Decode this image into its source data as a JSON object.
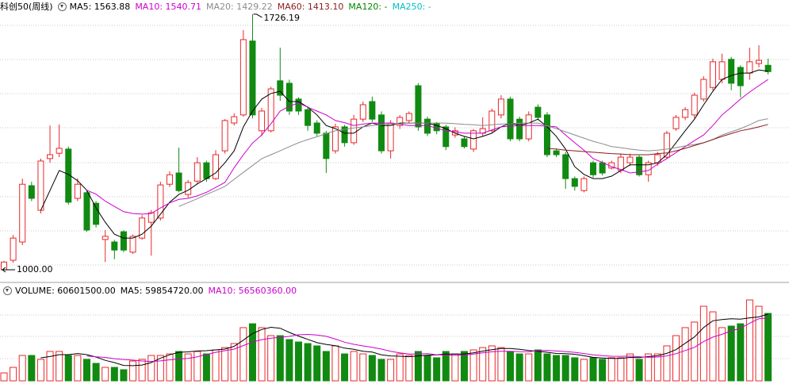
{
  "chart_data": [
    {
      "type": "candlestick",
      "title": "科创50(周线)",
      "ylim": [
        973,
        1744
      ],
      "up_color": "#e8282a",
      "down_color": "#118a11",
      "open": [
        1000,
        1027,
        1079,
        1239,
        1169,
        1316,
        1331,
        1343,
        1203,
        1219,
        1189,
        1086,
        1079,
        1108,
        1050,
        1090,
        1135,
        1147,
        1243,
        1275,
        1214,
        1252,
        1304,
        1259,
        1338,
        1417,
        1440,
        1650,
        1395,
        1395,
        1537,
        1530,
        1485,
        1455,
        1417,
        1388,
        1338,
        1406,
        1361,
        1428,
        1478,
        1440,
        1338,
        1410,
        1424,
        1523,
        1428,
        1415,
        1406,
        1383,
        1372,
        1343,
        1388,
        1395,
        1440,
        1485,
        1428,
        1372,
        1462,
        1440,
        1338,
        1327,
        1259,
        1225,
        1304,
        1304,
        1289,
        1282,
        1304,
        1320,
        1270,
        1304,
        1320,
        1401,
        1433,
        1440,
        1485,
        1518,
        1541,
        1598,
        1575,
        1559,
        1586,
        1581
      ],
      "high": [
        1025,
        1099,
        1259,
        1250,
        1316,
        1410,
        1413,
        1350,
        1260,
        1225,
        1195,
        1113,
        1085,
        1112,
        1100,
        1155,
        1170,
        1250,
        1280,
        1347,
        1255,
        1320,
        1310,
        1340,
        1428,
        1445,
        1681,
        1726.19,
        1460,
        1520,
        1631,
        1540,
        1490,
        1465,
        1425,
        1395,
        1415,
        1412,
        1440,
        1478,
        1492,
        1450,
        1425,
        1440,
        1450,
        1530,
        1435,
        1420,
        1412,
        1405,
        1380,
        1400,
        1433,
        1458,
        1496,
        1492,
        1435,
        1450,
        1470,
        1448,
        1345,
        1335,
        1265,
        1265,
        1310,
        1310,
        1310,
        1330,
        1330,
        1325,
        1310,
        1335,
        1395,
        1440,
        1462,
        1503,
        1550,
        1600,
        1614,
        1605,
        1581,
        1631,
        1638,
        1600
      ],
      "low": [
        1000,
        1020,
        1070,
        1195,
        1160,
        1304,
        1320,
        1185,
        1195,
        1108,
        1120,
        1022,
        1030,
        1050,
        1045,
        1085,
        1040,
        1140,
        1235,
        1220,
        1205,
        1245,
        1250,
        1255,
        1330,
        1410,
        1435,
        1430,
        1380,
        1390,
        1480,
        1440,
        1440,
        1395,
        1380,
        1275,
        1330,
        1350,
        1355,
        1420,
        1420,
        1330,
        1316,
        1400,
        1415,
        1395,
        1380,
        1385,
        1340,
        1375,
        1345,
        1335,
        1380,
        1390,
        1430,
        1365,
        1365,
        1365,
        1425,
        1320,
        1320,
        1230,
        1225,
        1220,
        1262,
        1268,
        1285,
        1275,
        1295,
        1265,
        1250,
        1295,
        1315,
        1395,
        1425,
        1430,
        1478,
        1510,
        1530,
        1510,
        1490,
        1540,
        1575,
        1555
      ],
      "close": [
        1022,
        1090,
        1243,
        1203,
        1309,
        1327,
        1345,
        1192,
        1243,
        1113,
        1129,
        1095,
        1056,
        1056,
        1095,
        1147,
        1162,
        1241,
        1270,
        1225,
        1248,
        1304,
        1259,
        1327,
        1424,
        1435,
        1654,
        1440,
        1451,
        1514,
        1496,
        1451,
        1451,
        1410,
        1388,
        1316,
        1406,
        1361,
        1428,
        1469,
        1428,
        1338,
        1417,
        1433,
        1444,
        1406,
        1388,
        1395,
        1350,
        1395,
        1350,
        1395,
        1401,
        1451,
        1485,
        1372,
        1372,
        1440,
        1433,
        1327,
        1327,
        1259,
        1237,
        1259,
        1270,
        1275,
        1304,
        1320,
        1320,
        1270,
        1304,
        1327,
        1388,
        1433,
        1455,
        1496,
        1541,
        1591,
        1591,
        1530,
        1523,
        1591,
        1595,
        1563
      ],
      "series": [
        {
          "name": "MA5",
          "legend": "MA5: 1563.88",
          "color": "#000000",
          "values": [
            null,
            null,
            null,
            null,
            1169,
            1225,
            1282,
            1271,
            1253,
            1226,
            1176,
            1135,
            1101,
            1090,
            1090,
            1101,
            1124,
            1158,
            1192,
            1214,
            1226,
            1244,
            1259,
            1275,
            1304,
            1338,
            1406,
            1451,
            1485,
            1501,
            1507,
            1478,
            1478,
            1462,
            1440,
            1410,
            1401,
            1388,
            1388,
            1406,
            1417,
            1410,
            1410,
            1417,
            1417,
            1417,
            1417,
            1410,
            1401,
            1388,
            1379,
            1372,
            1379,
            1388,
            1406,
            1417,
            1410,
            1417,
            1428,
            1406,
            1379,
            1343,
            1293,
            1271,
            1259,
            1259,
            1266,
            1282,
            1298,
            1298,
            1298,
            1304,
            1327,
            1361,
            1395,
            1428,
            1469,
            1507,
            1541,
            1552,
            1559,
            1559,
            1568,
            1563.88
          ]
        },
        {
          "name": "MA10",
          "legend": "MA10: 1540.71",
          "color": "#cc00cc",
          "values": [
            null,
            null,
            null,
            null,
            null,
            null,
            null,
            null,
            null,
            1226,
            1215,
            1195,
            1180,
            1165,
            1160,
            1158,
            1160,
            1176,
            1190,
            1200,
            1203,
            1210,
            1220,
            1234,
            1248,
            1290,
            1327,
            1360,
            1383,
            1415,
            1451,
            1465,
            1474,
            1462,
            1451,
            1440,
            1424,
            1418,
            1410,
            1414,
            1417,
            1417,
            1417,
            1414,
            1410,
            1410,
            1410,
            1402,
            1395,
            1392,
            1388,
            1388,
            1388,
            1397,
            1406,
            1408,
            1410,
            1410,
            1410,
            1408,
            1406,
            1383,
            1361,
            1340,
            1316,
            1305,
            1293,
            1285,
            1275,
            1278,
            1282,
            1300,
            1316,
            1333,
            1350,
            1367,
            1383,
            1410,
            1440,
            1462,
            1485,
            1505,
            1523,
            1540.71
          ]
        },
        {
          "name": "MA20",
          "legend": "MA20: 1429.22",
          "color": "#8c8c8c",
          "values": [
            null,
            null,
            null,
            null,
            null,
            null,
            null,
            null,
            null,
            null,
            null,
            null,
            null,
            null,
            null,
            null,
            null,
            null,
            null,
            1180,
            1191,
            1202,
            1214,
            1225,
            1237,
            1257,
            1277,
            1296,
            1316,
            1327,
            1338,
            1350,
            1361,
            1370,
            1378,
            1387,
            1395,
            1399,
            1403,
            1406,
            1410,
            1412,
            1414,
            1415,
            1417,
            1417,
            1417,
            1417,
            1417,
            1415,
            1413,
            1412,
            1410,
            1412,
            1414,
            1415,
            1417,
            1417,
            1417,
            1409,
            1401,
            1392,
            1383,
            1374,
            1365,
            1358,
            1350,
            1347,
            1343,
            1340,
            1338,
            1340,
            1343,
            1347,
            1352,
            1356,
            1361,
            1370,
            1383,
            1392,
            1401,
            1412,
            1424,
            1429.22
          ]
        },
        {
          "name": "MA60",
          "legend": "MA60: 1413.10",
          "color": "#8b1c1c",
          "values": [
            null,
            null,
            null,
            null,
            null,
            null,
            null,
            null,
            null,
            null,
            null,
            null,
            null,
            null,
            null,
            null,
            null,
            null,
            null,
            null,
            null,
            null,
            null,
            null,
            null,
            null,
            null,
            null,
            null,
            null,
            null,
            null,
            null,
            null,
            null,
            null,
            null,
            null,
            null,
            null,
            null,
            null,
            null,
            null,
            null,
            null,
            null,
            null,
            null,
            null,
            null,
            null,
            null,
            null,
            null,
            null,
            null,
            null,
            null,
            1345,
            1343,
            1340,
            1338,
            1336,
            1334,
            1332,
            1330,
            1329,
            1327,
            1327,
            1327,
            1330,
            1332,
            1338,
            1345,
            1353,
            1361,
            1370,
            1379,
            1387,
            1395,
            1400,
            1406,
            1413.1
          ]
        },
        {
          "name": "MA120",
          "legend": "MA120: -",
          "color": "#008800"
        },
        {
          "name": "MA250",
          "legend": "MA250: -",
          "color": "#00c0c0"
        }
      ],
      "annotations": [
        {
          "index": 27,
          "value": 1726.19,
          "label": "1726.19"
        },
        {
          "index": 0,
          "value": 1000,
          "label": "1000.00"
        }
      ]
    },
    {
      "type": "bar",
      "title": "VOLUME: 60601500.00",
      "ylim": [
        0,
        77000000
      ],
      "values": [
        7100000,
        12100000,
        22800000,
        22800000,
        19300000,
        26400000,
        26400000,
        22800000,
        22800000,
        19300000,
        15700000,
        12100000,
        12100000,
        10000000,
        17800000,
        19300000,
        22800000,
        22800000,
        24200000,
        26400000,
        24200000,
        26400000,
        24200000,
        27800000,
        29900000,
        33500000,
        47800000,
        51300000,
        47800000,
        40600000,
        40600000,
        37100000,
        34900000,
        33500000,
        31400000,
        26400000,
        31400000,
        24200000,
        26400000,
        24200000,
        22800000,
        19300000,
        19300000,
        24200000,
        22800000,
        26400000,
        22800000,
        20700000,
        26400000,
        24200000,
        26400000,
        27800000,
        29900000,
        31400000,
        29900000,
        26400000,
        24200000,
        24200000,
        27800000,
        24200000,
        22800000,
        22800000,
        20700000,
        19300000,
        20700000,
        19300000,
        20700000,
        20700000,
        24200000,
        19300000,
        24200000,
        24200000,
        31400000,
        40600000,
        47800000,
        52800000,
        67000000,
        62000000,
        47800000,
        49200000,
        51300000,
        72700000,
        67000000,
        60601500
      ],
      "series": [
        {
          "name": "MA5",
          "legend": "MA5: 59854720.00",
          "color": "#000000",
          "values": [
            null,
            null,
            null,
            null,
            20700000,
            21800000,
            23500000,
            23500000,
            24500000,
            23500000,
            21400000,
            18400000,
            16400000,
            13800000,
            13600000,
            14200000,
            16400000,
            20400000,
            23400000,
            25700000,
            26000000,
            26800000,
            27100000,
            27800000,
            28500000,
            31000000,
            36600000,
            42500000,
            46100000,
            48100000,
            47300000,
            43500000,
            40200000,
            37300000,
            34300000,
            32700000,
            31500000,
            29400000,
            28300000,
            26500000,
            25800000,
            23400000,
            22400000,
            22100000,
            21700000,
            22400000,
            23100000,
            23400000,
            24100000,
            24100000,
            24100000,
            25100000,
            26700000,
            28000000,
            29100000,
            29100000,
            28300000,
            27200000,
            26500000,
            25700000,
            24600000,
            24400000,
            23900000,
            22500000,
            21100000,
            20500000,
            20100000,
            20100000,
            21000000,
            20800000,
            21800000,
            22500000,
            24700000,
            28000000,
            33700000,
            39400000,
            47900000,
            54000000,
            55100000,
            55800000,
            55500000,
            56600000,
            57500000,
            59854720
          ]
        },
        {
          "name": "MA10",
          "legend": "MA10: 56560360.00",
          "color": "#cc00cc",
          "values": [
            null,
            null,
            null,
            null,
            null,
            null,
            null,
            null,
            null,
            22300000,
            21600000,
            21000000,
            19900000,
            19200000,
            18600000,
            17800000,
            17400000,
            17900000,
            18900000,
            19600000,
            20100000,
            21600000,
            23700000,
            25600000,
            27100000,
            28500000,
            31700000,
            34800000,
            37000000,
            38300000,
            39100000,
            39900000,
            41400000,
            41700000,
            41200000,
            40000000,
            37500000,
            34700000,
            32800000,
            31400000,
            30100000,
            28500000,
            26600000,
            25200000,
            24100000,
            24100000,
            24500000,
            23400000,
            23200000,
            22900000,
            23200000,
            24100000,
            25100000,
            26100000,
            26600000,
            26600000,
            26200000,
            26100000,
            27200000,
            27400000,
            26800000,
            26300000,
            25600000,
            24500000,
            23400000,
            22600000,
            22100000,
            22000000,
            22200000,
            21700000,
            21100000,
            21400000,
            22400000,
            24400000,
            27200000,
            30100000,
            35300000,
            39300000,
            41800000,
            44900000,
            47200000,
            51800000,
            55800000,
            56560360
          ]
        }
      ]
    }
  ]
}
